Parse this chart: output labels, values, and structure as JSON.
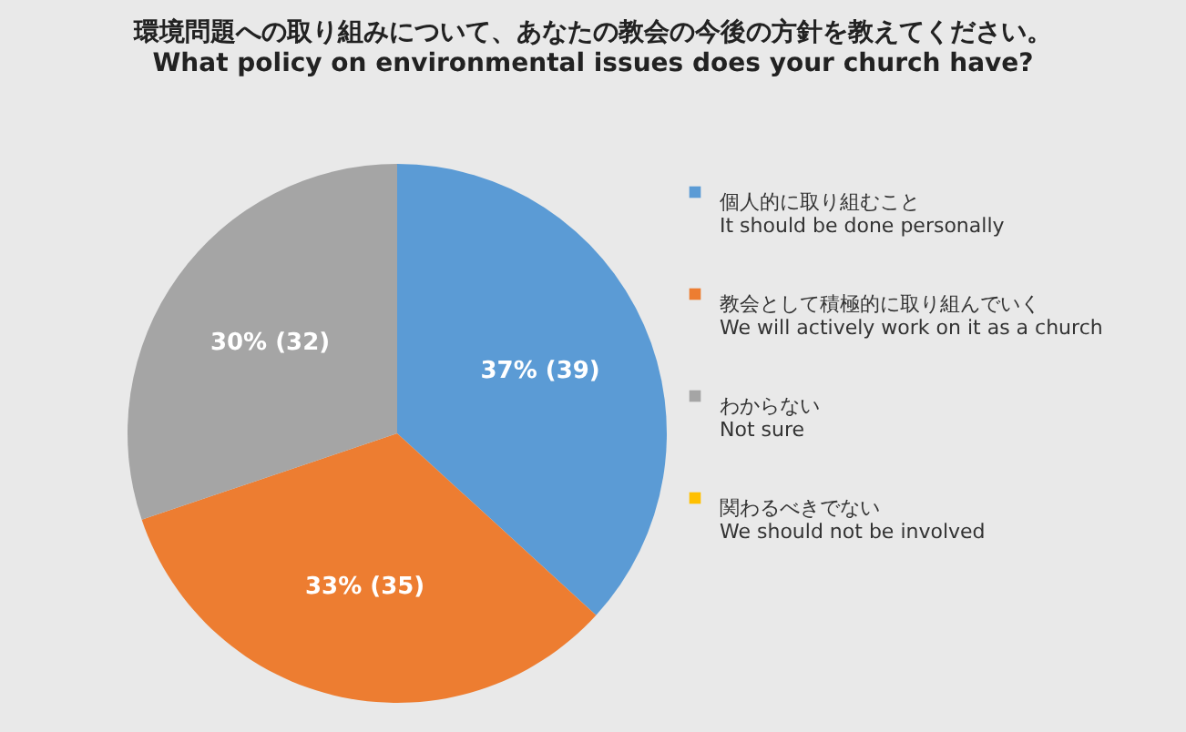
{
  "chart_data": {
    "type": "pie",
    "title": "環境問題への取り組みについて、あなたの教会の今後の方針を教えてください。",
    "subtitle": "What policy on environmental issues does your church have?",
    "categories": [
      "個人的に取り組むこと\nIt should be done personally",
      "教会として積極的に取り組んでいく\nWe will actively work on it as a church",
      "わからない\nNot sure",
      "関わるべきでない\nWe should not be involved"
    ],
    "values": [
      39,
      35,
      32,
      0
    ],
    "colors": [
      "#5b9bd5",
      "#ed7d31",
      "#a5a5a5",
      "#ffc000"
    ],
    "value_labels": [
      "37% (39)",
      "33% (35)",
      "30% (32)",
      null
    ],
    "legend": "right"
  }
}
